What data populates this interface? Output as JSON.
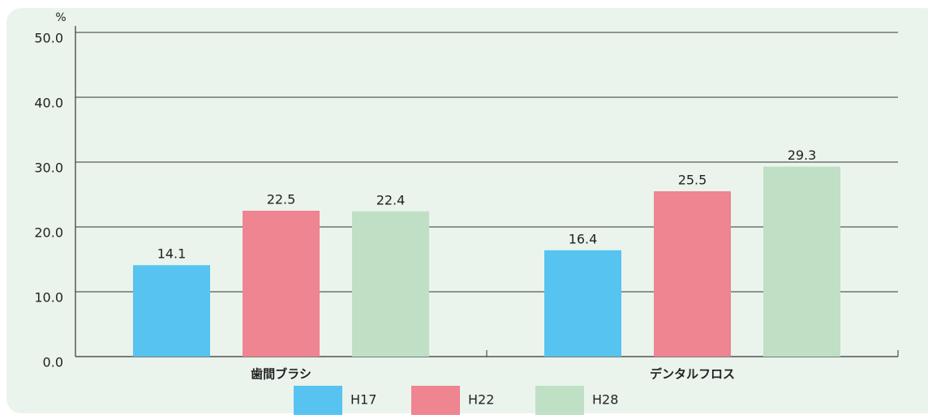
{
  "chart_data": {
    "type": "bar",
    "y_unit": "%",
    "categories": [
      "歯間ブラシ",
      "デンタルフロス"
    ],
    "series": [
      {
        "name": "H17",
        "color": "#57c3f1",
        "values": [
          14.1,
          16.4
        ]
      },
      {
        "name": "H22",
        "color": "#ee8590",
        "values": [
          22.5,
          25.5
        ]
      },
      {
        "name": "H28",
        "color": "#bfe0c5",
        "values": [
          22.4,
          29.3
        ]
      }
    ],
    "ylim": [
      0,
      50
    ],
    "yticks": [
      {
        "value": 0,
        "label": "0.0"
      },
      {
        "value": 10,
        "label": "10.0"
      },
      {
        "value": 20,
        "label": "20.0"
      },
      {
        "value": 30,
        "label": "30.0"
      },
      {
        "value": 40,
        "label": "40.0"
      },
      {
        "value": 50,
        "label": "50.0"
      }
    ],
    "grid": true
  }
}
